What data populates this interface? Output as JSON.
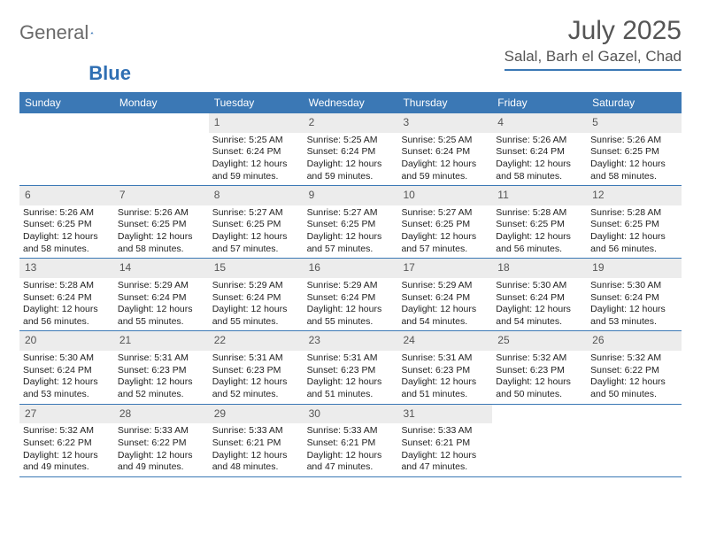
{
  "logo": {
    "text1": "General",
    "text2": "Blue"
  },
  "title": "July 2025",
  "location": "Salal, Barh el Gazel, Chad",
  "colors": {
    "header_bar": "#3b78b5",
    "daynum_bg": "#ececec",
    "text_dark": "#222222",
    "text_muted": "#555555",
    "rule": "#3b78b5",
    "background": "#ffffff"
  },
  "typography": {
    "title_fontsize": 30,
    "location_fontsize": 17,
    "weekday_fontsize": 12,
    "daynum_fontsize": 12,
    "body_fontsize": 10.5
  },
  "weekdays": [
    "Sunday",
    "Monday",
    "Tuesday",
    "Wednesday",
    "Thursday",
    "Friday",
    "Saturday"
  ],
  "weeks": [
    [
      {
        "n": "",
        "sr": "",
        "ss": "",
        "dl": ""
      },
      {
        "n": "",
        "sr": "",
        "ss": "",
        "dl": ""
      },
      {
        "n": "1",
        "sr": "5:25 AM",
        "ss": "6:24 PM",
        "dl": "12 hours and 59 minutes."
      },
      {
        "n": "2",
        "sr": "5:25 AM",
        "ss": "6:24 PM",
        "dl": "12 hours and 59 minutes."
      },
      {
        "n": "3",
        "sr": "5:25 AM",
        "ss": "6:24 PM",
        "dl": "12 hours and 59 minutes."
      },
      {
        "n": "4",
        "sr": "5:26 AM",
        "ss": "6:24 PM",
        "dl": "12 hours and 58 minutes."
      },
      {
        "n": "5",
        "sr": "5:26 AM",
        "ss": "6:25 PM",
        "dl": "12 hours and 58 minutes."
      }
    ],
    [
      {
        "n": "6",
        "sr": "5:26 AM",
        "ss": "6:25 PM",
        "dl": "12 hours and 58 minutes."
      },
      {
        "n": "7",
        "sr": "5:26 AM",
        "ss": "6:25 PM",
        "dl": "12 hours and 58 minutes."
      },
      {
        "n": "8",
        "sr": "5:27 AM",
        "ss": "6:25 PM",
        "dl": "12 hours and 57 minutes."
      },
      {
        "n": "9",
        "sr": "5:27 AM",
        "ss": "6:25 PM",
        "dl": "12 hours and 57 minutes."
      },
      {
        "n": "10",
        "sr": "5:27 AM",
        "ss": "6:25 PM",
        "dl": "12 hours and 57 minutes."
      },
      {
        "n": "11",
        "sr": "5:28 AM",
        "ss": "6:25 PM",
        "dl": "12 hours and 56 minutes."
      },
      {
        "n": "12",
        "sr": "5:28 AM",
        "ss": "6:25 PM",
        "dl": "12 hours and 56 minutes."
      }
    ],
    [
      {
        "n": "13",
        "sr": "5:28 AM",
        "ss": "6:24 PM",
        "dl": "12 hours and 56 minutes."
      },
      {
        "n": "14",
        "sr": "5:29 AM",
        "ss": "6:24 PM",
        "dl": "12 hours and 55 minutes."
      },
      {
        "n": "15",
        "sr": "5:29 AM",
        "ss": "6:24 PM",
        "dl": "12 hours and 55 minutes."
      },
      {
        "n": "16",
        "sr": "5:29 AM",
        "ss": "6:24 PM",
        "dl": "12 hours and 55 minutes."
      },
      {
        "n": "17",
        "sr": "5:29 AM",
        "ss": "6:24 PM",
        "dl": "12 hours and 54 minutes."
      },
      {
        "n": "18",
        "sr": "5:30 AM",
        "ss": "6:24 PM",
        "dl": "12 hours and 54 minutes."
      },
      {
        "n": "19",
        "sr": "5:30 AM",
        "ss": "6:24 PM",
        "dl": "12 hours and 53 minutes."
      }
    ],
    [
      {
        "n": "20",
        "sr": "5:30 AM",
        "ss": "6:24 PM",
        "dl": "12 hours and 53 minutes."
      },
      {
        "n": "21",
        "sr": "5:31 AM",
        "ss": "6:23 PM",
        "dl": "12 hours and 52 minutes."
      },
      {
        "n": "22",
        "sr": "5:31 AM",
        "ss": "6:23 PM",
        "dl": "12 hours and 52 minutes."
      },
      {
        "n": "23",
        "sr": "5:31 AM",
        "ss": "6:23 PM",
        "dl": "12 hours and 51 minutes."
      },
      {
        "n": "24",
        "sr": "5:31 AM",
        "ss": "6:23 PM",
        "dl": "12 hours and 51 minutes."
      },
      {
        "n": "25",
        "sr": "5:32 AM",
        "ss": "6:23 PM",
        "dl": "12 hours and 50 minutes."
      },
      {
        "n": "26",
        "sr": "5:32 AM",
        "ss": "6:22 PM",
        "dl": "12 hours and 50 minutes."
      }
    ],
    [
      {
        "n": "27",
        "sr": "5:32 AM",
        "ss": "6:22 PM",
        "dl": "12 hours and 49 minutes."
      },
      {
        "n": "28",
        "sr": "5:33 AM",
        "ss": "6:22 PM",
        "dl": "12 hours and 49 minutes."
      },
      {
        "n": "29",
        "sr": "5:33 AM",
        "ss": "6:21 PM",
        "dl": "12 hours and 48 minutes."
      },
      {
        "n": "30",
        "sr": "5:33 AM",
        "ss": "6:21 PM",
        "dl": "12 hours and 47 minutes."
      },
      {
        "n": "31",
        "sr": "5:33 AM",
        "ss": "6:21 PM",
        "dl": "12 hours and 47 minutes."
      },
      {
        "n": "",
        "sr": "",
        "ss": "",
        "dl": ""
      },
      {
        "n": "",
        "sr": "",
        "ss": "",
        "dl": ""
      }
    ]
  ],
  "labels": {
    "sunrise": "Sunrise:",
    "sunset": "Sunset:",
    "daylight": "Daylight:"
  }
}
